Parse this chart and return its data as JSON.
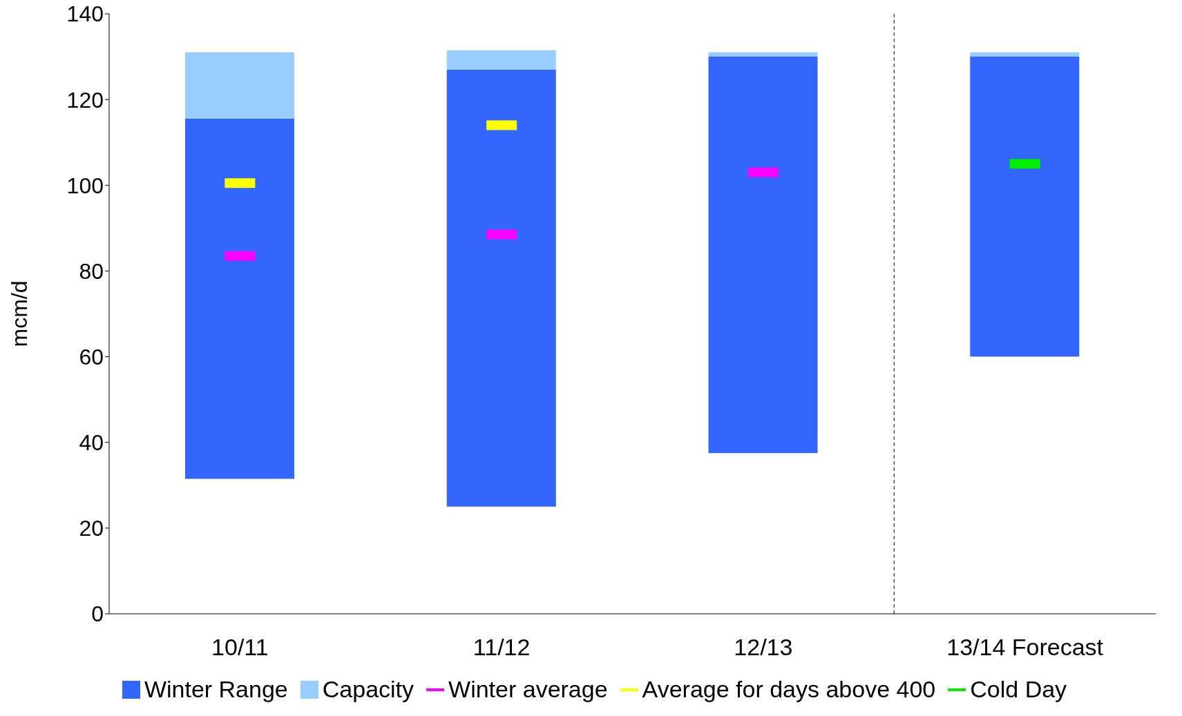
{
  "chart_data": {
    "type": "bar",
    "ylabel": "mcm/d",
    "categories": [
      "10/11",
      "11/12",
      "12/13",
      "13/14 Forecast"
    ],
    "ylim": [
      0,
      140
    ],
    "yticks": [
      0,
      20,
      40,
      60,
      80,
      100,
      120,
      140
    ],
    "legend": "bottom",
    "series": [
      {
        "name": "Winter Range",
        "color": "#3366ff",
        "base": [
          31.5,
          25,
          37.5,
          60
        ],
        "values": [
          84,
          102,
          92.5,
          70
        ]
      },
      {
        "name": "Capacity",
        "color": "#99ccff",
        "base": [
          115.5,
          127,
          130,
          130
        ],
        "values": [
          15.5,
          4.5,
          1,
          1
        ]
      },
      {
        "name": "Winter average",
        "type": "scatter",
        "color": "#ff00ff",
        "values": [
          83.5,
          88.5,
          103,
          null
        ]
      },
      {
        "name": "Average for days above 400",
        "type": "scatter",
        "color": "#ffff00",
        "values": [
          100.5,
          114,
          null,
          null
        ]
      },
      {
        "name": "Cold Day",
        "type": "scatter",
        "color": "#00ee00",
        "values": [
          null,
          null,
          null,
          105
        ]
      }
    ]
  }
}
